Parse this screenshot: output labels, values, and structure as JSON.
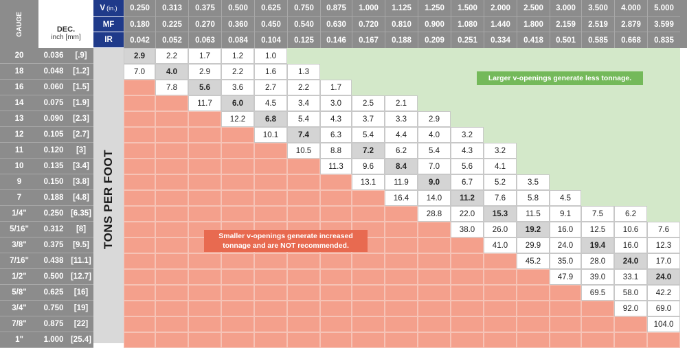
{
  "header": {
    "gauge_label": "GAUGE",
    "dec_label": "DEC.",
    "dec_unit_label": "inch [mm]",
    "row_labels": {
      "v": "V",
      "v_unit": "(in.)",
      "mf": "MF",
      "ir": "IR"
    },
    "v_values": [
      "0.250",
      "0.313",
      "0.375",
      "0.500",
      "0.625",
      "0.750",
      "0.875",
      "1.000",
      "1.125",
      "1.250",
      "1.500",
      "2.000",
      "2.500",
      "3.000",
      "3.500",
      "4.000",
      "5.000"
    ],
    "mf_values": [
      "0.180",
      "0.225",
      "0.270",
      "0.360",
      "0.450",
      "0.540",
      "0.630",
      "0.720",
      "0.810",
      "0.900",
      "1.080",
      "1.440",
      "1.800",
      "2.159",
      "2.519",
      "2.879",
      "3.599"
    ],
    "ir_values": [
      "0.042",
      "0.052",
      "0.063",
      "0.084",
      "0.104",
      "0.125",
      "0.146",
      "0.167",
      "0.188",
      "0.209",
      "0.251",
      "0.334",
      "0.418",
      "0.501",
      "0.585",
      "0.668",
      "0.835"
    ]
  },
  "side_label": "TONS PER FOOT",
  "notes": {
    "larger": "Larger v-openings generate less tonnage.",
    "smaller_line1": "Smaller v-openings generate increased",
    "smaller_line2": "tonnage and are NOT recommended."
  },
  "colors": {
    "header_bg": "#8c8c8c",
    "header_dark": "#1f3a8a",
    "green_region": "#d3e8c9",
    "red_region": "#f4a08c",
    "recommended_cell": "#d4d4d4",
    "green_note_bg": "#74b95a",
    "red_note_bg": "#e86a50",
    "grid_line": "#ffffff"
  },
  "rows": [
    {
      "gauge": "20",
      "dec": "0.036",
      "mm": "[.9]",
      "start": 0,
      "values": [
        "2.9",
        "2.2",
        "1.7",
        "1.2",
        "1.0"
      ],
      "highlight": 0
    },
    {
      "gauge": "18",
      "dec": "0.048",
      "mm": "[1.2]",
      "start": 0,
      "values": [
        "7.0",
        "4.0",
        "2.9",
        "2.2",
        "1.6",
        "1.3"
      ],
      "highlight": 1
    },
    {
      "gauge": "16",
      "dec": "0.060",
      "mm": "[1.5]",
      "start": 1,
      "values": [
        "7.8",
        "5.6",
        "3.6",
        "2.7",
        "2.2",
        "1.7"
      ],
      "highlight": 2
    },
    {
      "gauge": "14",
      "dec": "0.075",
      "mm": "[1.9]",
      "start": 2,
      "values": [
        "11.7",
        "6.0",
        "4.5",
        "3.4",
        "3.0",
        "2.5",
        "2.1"
      ],
      "highlight": 3
    },
    {
      "gauge": "13",
      "dec": "0.090",
      "mm": "[2.3]",
      "start": 3,
      "values": [
        "12.2",
        "6.8",
        "5.4",
        "4.3",
        "3.7",
        "3.3",
        "2.9"
      ],
      "highlight": 4
    },
    {
      "gauge": "12",
      "dec": "0.105",
      "mm": "[2.7]",
      "start": 4,
      "values": [
        "10.1",
        "7.4",
        "6.3",
        "5.4",
        "4.4",
        "4.0",
        "3.2"
      ],
      "highlight": 5
    },
    {
      "gauge": "11",
      "dec": "0.120",
      "mm": "[3]",
      "start": 5,
      "values": [
        "10.5",
        "8.8",
        "7.2",
        "6.2",
        "5.4",
        "4.3",
        "3.2"
      ],
      "highlight": 7
    },
    {
      "gauge": "10",
      "dec": "0.135",
      "mm": "[3.4]",
      "start": 6,
      "values": [
        "11.3",
        "9.6",
        "8.4",
        "7.0",
        "5.6",
        "4.1"
      ],
      "highlight": 8
    },
    {
      "gauge": "9",
      "dec": "0.150",
      "mm": "[3.8]",
      "start": 7,
      "values": [
        "13.1",
        "11.9",
        "9.0",
        "6.7",
        "5.2",
        "3.5"
      ],
      "highlight": 9
    },
    {
      "gauge": "7",
      "dec": "0.188",
      "mm": "[4.8]",
      "start": 8,
      "values": [
        "16.4",
        "14.0",
        "11.2",
        "7.6",
        "5.8",
        "4.5"
      ],
      "highlight": 10
    },
    {
      "gauge": "1/4\"",
      "dec": "0.250",
      "mm": "[6.35]",
      "start": 9,
      "values": [
        "28.8",
        "22.0",
        "15.3",
        "11.5",
        "9.1",
        "7.5",
        "6.2"
      ],
      "highlight": 11
    },
    {
      "gauge": "5/16\"",
      "dec": "0.312",
      "mm": "[8]",
      "start": 10,
      "values": [
        "38.0",
        "26.0",
        "19.2",
        "16.0",
        "12.5",
        "10.6",
        "7.6"
      ],
      "highlight": 12
    },
    {
      "gauge": "3/8\"",
      "dec": "0.375",
      "mm": "[9.5]",
      "start": 11,
      "values": [
        "41.0",
        "29.9",
        "24.0",
        "19.4",
        "16.0",
        "12.3"
      ],
      "highlight": 14
    },
    {
      "gauge": "7/16\"",
      "dec": "0.438",
      "mm": "[11.1]",
      "start": 12,
      "values": [
        "45.2",
        "35.0",
        "28.0",
        "24.0",
        "17.0"
      ],
      "highlight": 15
    },
    {
      "gauge": "1/2\"",
      "dec": "0.500",
      "mm": "[12.7]",
      "start": 13,
      "values": [
        "47.9",
        "39.0",
        "33.1",
        "24.0"
      ],
      "highlight": 16
    },
    {
      "gauge": "5/8\"",
      "dec": "0.625",
      "mm": "[16]",
      "start": 14,
      "values": [
        "69.5",
        "58.0",
        "42.2"
      ],
      "highlight": -1
    },
    {
      "gauge": "3/4\"",
      "dec": "0.750",
      "mm": "[19]",
      "start": 15,
      "values": [
        "92.0",
        "69.0"
      ],
      "highlight": -1
    },
    {
      "gauge": "7/8\"",
      "dec": "0.875",
      "mm": "[22]",
      "start": 16,
      "values": [
        "104.0"
      ],
      "highlight": -1
    },
    {
      "gauge": "1\"",
      "dec": "1.000",
      "mm": "[25.4]",
      "start": 17,
      "values": [],
      "highlight": -1
    }
  ]
}
